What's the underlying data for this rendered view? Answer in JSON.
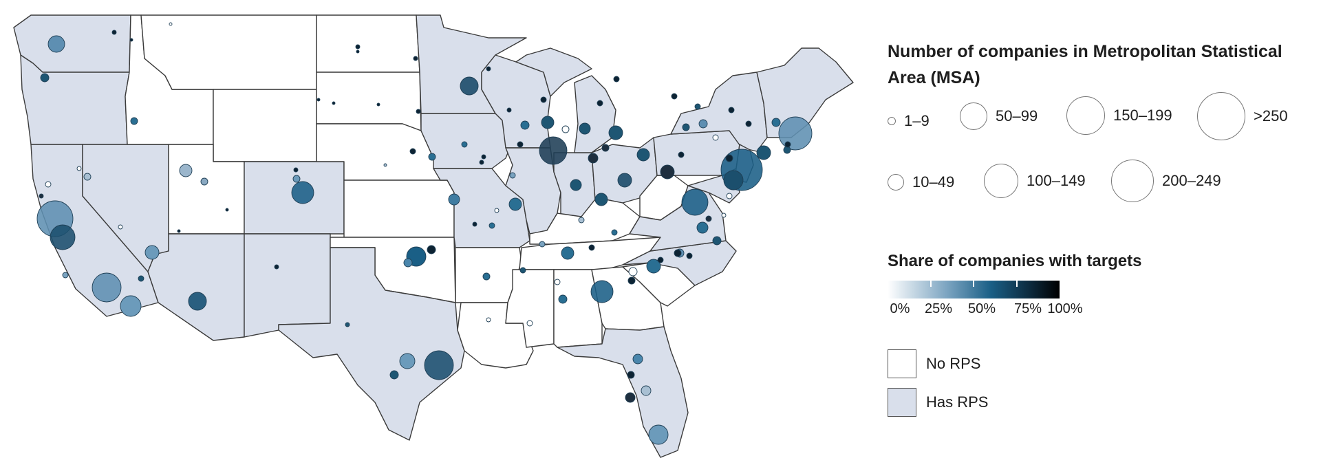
{
  "legend": {
    "size_title": "Number of companies in Metropolitan Statistical Area (MSA)",
    "sizes": [
      {
        "label": "1–9"
      },
      {
        "label": "50–99"
      },
      {
        "label": "150–199"
      },
      {
        "label": ">250"
      },
      {
        "label": "10–49"
      },
      {
        "label": "100–149"
      },
      {
        "label": "200–249"
      }
    ],
    "share_title": "Share of companies with targets",
    "share_ticks": [
      "0%",
      "25%",
      "50%",
      "75%",
      "100%"
    ],
    "rps_items": [
      {
        "label": "No RPS"
      },
      {
        "label": "Has RPS"
      }
    ]
  },
  "colors": {
    "has_rps": "#d9dfeb",
    "no_rps": "#ffffff",
    "border": "#3b3b3b",
    "bubble_ramp": [
      "#ffffff",
      "#7aa3c0",
      "#1a5f86",
      "#0d2c40",
      "#000000"
    ]
  }
}
